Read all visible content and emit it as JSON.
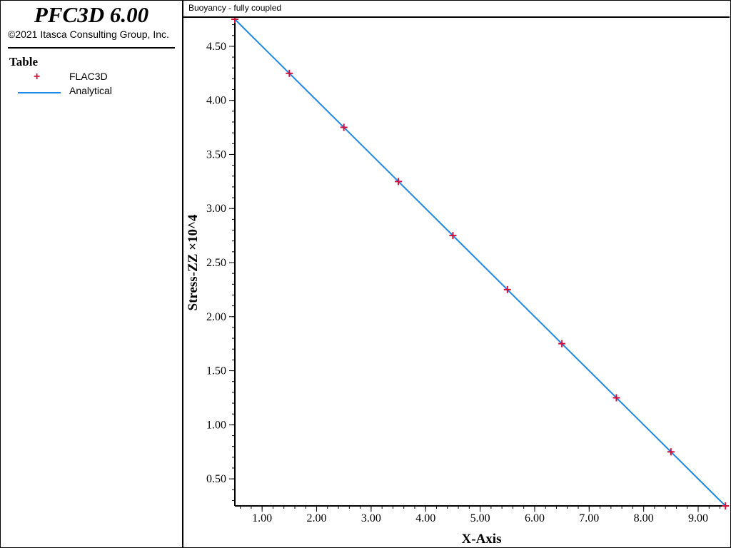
{
  "app": {
    "title": "PFC3D 6.00",
    "copyright": "©2021 Itasca Consulting Group, Inc."
  },
  "legend": {
    "title": "Table",
    "items": [
      {
        "label": "FLAC3D",
        "marker": "+",
        "color": "#d1103a"
      },
      {
        "label": "Analytical",
        "marker": "line",
        "color": "#1e88e5"
      }
    ]
  },
  "plot": {
    "title": "Buoyancy - fully coupled"
  },
  "chart_data": {
    "type": "line",
    "xlabel": "X-Axis",
    "ylabel": "Stress-ZZ ×10^4",
    "xlim": [
      0.5,
      9.55
    ],
    "ylim": [
      0.25,
      4.75
    ],
    "xticks": [
      1,
      2,
      3,
      4,
      5,
      6,
      7,
      8,
      9
    ],
    "xtick_labels": [
      "1.00",
      "2.00",
      "3.00",
      "4.00",
      "5.00",
      "6.00",
      "7.00",
      "8.00",
      "9.00"
    ],
    "yticks": [
      0.5,
      1.0,
      1.5,
      2.0,
      2.5,
      3.0,
      3.5,
      4.0,
      4.5
    ],
    "ytick_labels": [
      "0.50",
      "1.00",
      "1.50",
      "2.00",
      "2.50",
      "3.00",
      "3.50",
      "4.00",
      "4.50"
    ],
    "series": [
      {
        "name": "FLAC3D",
        "style": "markers",
        "color": "#d1103a",
        "x": [
          0.5,
          1.5,
          2.5,
          3.5,
          4.5,
          5.5,
          6.5,
          7.5,
          8.5,
          9.5
        ],
        "y": [
          4.75,
          4.25,
          3.75,
          3.25,
          2.75,
          2.25,
          1.75,
          1.25,
          0.75,
          0.25
        ]
      },
      {
        "name": "Analytical",
        "style": "line",
        "color": "#1e88e5",
        "x": [
          0.5,
          9.5
        ],
        "y": [
          4.75,
          0.25
        ]
      }
    ]
  }
}
